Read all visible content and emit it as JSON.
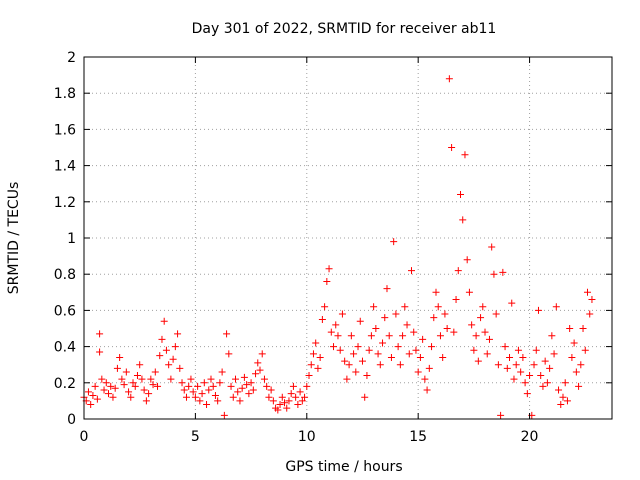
{
  "chart_data": {
    "type": "scatter",
    "title": "Day 301 of 2022, SRMTID for receiver ab11",
    "xlabel": "GPS time / hours",
    "ylabel": "SRMTID / TECUs",
    "xlim": [
      0,
      23.7
    ],
    "ylim": [
      0,
      2
    ],
    "xticks": [
      0,
      5,
      10,
      15,
      20
    ],
    "yticks": [
      0,
      0.2,
      0.4,
      0.6,
      0.8,
      1,
      1.2,
      1.4,
      1.6,
      1.8,
      2
    ],
    "xtick_labels": [
      "0",
      "5",
      "10",
      "15",
      "20"
    ],
    "ytick_labels": [
      "0",
      "0.2",
      "0.4",
      "0.6",
      "0.8",
      "1",
      "1.2",
      "1.4",
      "1.6",
      "1.8",
      "2"
    ],
    "grid": true,
    "marker": "plus",
    "color": "#ff0000",
    "series": [
      {
        "name": "SRMTID",
        "points": [
          [
            0.0,
            0.12
          ],
          [
            0.1,
            0.1
          ],
          [
            0.2,
            0.15
          ],
          [
            0.3,
            0.08
          ],
          [
            0.4,
            0.13
          ],
          [
            0.5,
            0.18
          ],
          [
            0.6,
            0.11
          ],
          [
            0.7,
            0.47
          ],
          [
            0.7,
            0.37
          ],
          [
            0.8,
            0.22
          ],
          [
            0.9,
            0.16
          ],
          [
            1.0,
            0.2
          ],
          [
            1.1,
            0.14
          ],
          [
            1.2,
            0.18
          ],
          [
            1.3,
            0.12
          ],
          [
            1.4,
            0.17
          ],
          [
            1.5,
            0.28
          ],
          [
            1.6,
            0.34
          ],
          [
            1.7,
            0.22
          ],
          [
            1.8,
            0.19
          ],
          [
            1.9,
            0.26
          ],
          [
            2.0,
            0.15
          ],
          [
            2.1,
            0.12
          ],
          [
            2.2,
            0.2
          ],
          [
            2.3,
            0.18
          ],
          [
            2.4,
            0.24
          ],
          [
            2.5,
            0.3
          ],
          [
            2.6,
            0.22
          ],
          [
            2.7,
            0.16
          ],
          [
            2.8,
            0.1
          ],
          [
            2.9,
            0.14
          ],
          [
            3.0,
            0.22
          ],
          [
            3.1,
            0.19
          ],
          [
            3.2,
            0.26
          ],
          [
            3.3,
            0.18
          ],
          [
            3.4,
            0.35
          ],
          [
            3.5,
            0.44
          ],
          [
            3.6,
            0.54
          ],
          [
            3.7,
            0.38
          ],
          [
            3.8,
            0.3
          ],
          [
            3.9,
            0.22
          ],
          [
            4.0,
            0.33
          ],
          [
            4.1,
            0.4
          ],
          [
            4.2,
            0.47
          ],
          [
            4.3,
            0.28
          ],
          [
            4.4,
            0.2
          ],
          [
            4.5,
            0.16
          ],
          [
            4.6,
            0.12
          ],
          [
            4.7,
            0.18
          ],
          [
            4.8,
            0.22
          ],
          [
            4.9,
            0.15
          ],
          [
            5.0,
            0.12
          ],
          [
            5.1,
            0.18
          ],
          [
            5.2,
            0.1
          ],
          [
            5.3,
            0.14
          ],
          [
            5.4,
            0.2
          ],
          [
            5.5,
            0.08
          ],
          [
            5.6,
            0.16
          ],
          [
            5.7,
            0.22
          ],
          [
            5.8,
            0.18
          ],
          [
            5.9,
            0.13
          ],
          [
            6.0,
            0.1
          ],
          [
            6.1,
            0.2
          ],
          [
            6.2,
            0.26
          ],
          [
            6.3,
            0.02
          ],
          [
            6.4,
            0.47
          ],
          [
            6.5,
            0.36
          ],
          [
            6.6,
            0.18
          ],
          [
            6.7,
            0.12
          ],
          [
            6.8,
            0.22
          ],
          [
            6.9,
            0.15
          ],
          [
            7.0,
            0.1
          ],
          [
            7.1,
            0.17
          ],
          [
            7.2,
            0.23
          ],
          [
            7.3,
            0.19
          ],
          [
            7.4,
            0.14
          ],
          [
            7.5,
            0.2
          ],
          [
            7.6,
            0.16
          ],
          [
            7.7,
            0.25
          ],
          [
            7.8,
            0.31
          ],
          [
            7.9,
            0.27
          ],
          [
            8.0,
            0.36
          ],
          [
            8.1,
            0.22
          ],
          [
            8.2,
            0.18
          ],
          [
            8.3,
            0.12
          ],
          [
            8.4,
            0.16
          ],
          [
            8.5,
            0.1
          ],
          [
            8.6,
            0.06
          ],
          [
            8.7,
            0.05
          ],
          [
            8.8,
            0.08
          ],
          [
            8.9,
            0.12
          ],
          [
            9.0,
            0.09
          ],
          [
            9.1,
            0.06
          ],
          [
            9.2,
            0.1
          ],
          [
            9.3,
            0.14
          ],
          [
            9.4,
            0.18
          ],
          [
            9.5,
            0.12
          ],
          [
            9.6,
            0.08
          ],
          [
            9.7,
            0.15
          ],
          [
            9.8,
            0.1
          ],
          [
            9.9,
            0.12
          ],
          [
            10.0,
            0.18
          ],
          [
            10.1,
            0.24
          ],
          [
            10.2,
            0.3
          ],
          [
            10.3,
            0.36
          ],
          [
            10.4,
            0.42
          ],
          [
            10.5,
            0.28
          ],
          [
            10.6,
            0.34
          ],
          [
            10.7,
            0.55
          ],
          [
            10.8,
            0.62
          ],
          [
            10.9,
            0.76
          ],
          [
            11.0,
            0.83
          ],
          [
            11.1,
            0.48
          ],
          [
            11.2,
            0.4
          ],
          [
            11.3,
            0.52
          ],
          [
            11.4,
            0.46
          ],
          [
            11.5,
            0.38
          ],
          [
            11.6,
            0.58
          ],
          [
            11.7,
            0.32
          ],
          [
            11.8,
            0.22
          ],
          [
            11.9,
            0.3
          ],
          [
            12.0,
            0.46
          ],
          [
            12.1,
            0.36
          ],
          [
            12.2,
            0.26
          ],
          [
            12.3,
            0.4
          ],
          [
            12.4,
            0.54
          ],
          [
            12.5,
            0.32
          ],
          [
            12.6,
            0.12
          ],
          [
            12.7,
            0.24
          ],
          [
            12.8,
            0.38
          ],
          [
            12.9,
            0.46
          ],
          [
            13.0,
            0.62
          ],
          [
            13.1,
            0.5
          ],
          [
            13.2,
            0.36
          ],
          [
            13.3,
            0.3
          ],
          [
            13.4,
            0.42
          ],
          [
            13.5,
            0.56
          ],
          [
            13.6,
            0.72
          ],
          [
            13.7,
            0.46
          ],
          [
            13.8,
            0.34
          ],
          [
            13.9,
            0.98
          ],
          [
            14.0,
            0.58
          ],
          [
            14.1,
            0.4
          ],
          [
            14.2,
            0.3
          ],
          [
            14.3,
            0.46
          ],
          [
            14.4,
            0.62
          ],
          [
            14.5,
            0.52
          ],
          [
            14.6,
            0.36
          ],
          [
            14.7,
            0.82
          ],
          [
            14.8,
            0.48
          ],
          [
            14.9,
            0.38
          ],
          [
            15.0,
            0.26
          ],
          [
            15.1,
            0.34
          ],
          [
            15.2,
            0.44
          ],
          [
            15.3,
            0.22
          ],
          [
            15.4,
            0.16
          ],
          [
            15.5,
            0.28
          ],
          [
            15.6,
            0.4
          ],
          [
            15.7,
            0.56
          ],
          [
            15.8,
            0.7
          ],
          [
            15.9,
            0.62
          ],
          [
            16.0,
            0.46
          ],
          [
            16.1,
            0.34
          ],
          [
            16.2,
            0.58
          ],
          [
            16.3,
            0.5
          ],
          [
            16.4,
            1.88
          ],
          [
            16.5,
            1.5
          ],
          [
            16.6,
            0.48
          ],
          [
            16.7,
            0.66
          ],
          [
            16.8,
            0.82
          ],
          [
            16.9,
            1.24
          ],
          [
            17.0,
            1.1
          ],
          [
            17.1,
            1.46
          ],
          [
            17.2,
            0.88
          ],
          [
            17.3,
            0.7
          ],
          [
            17.4,
            0.52
          ],
          [
            17.5,
            0.38
          ],
          [
            17.6,
            0.46
          ],
          [
            17.7,
            0.32
          ],
          [
            17.8,
            0.56
          ],
          [
            17.9,
            0.62
          ],
          [
            18.0,
            0.48
          ],
          [
            18.1,
            0.36
          ],
          [
            18.2,
            0.44
          ],
          [
            18.3,
            0.95
          ],
          [
            18.4,
            0.8
          ],
          [
            18.5,
            0.58
          ],
          [
            18.6,
            0.3
          ],
          [
            18.7,
            0.02
          ],
          [
            18.8,
            0.81
          ],
          [
            18.9,
            0.4
          ],
          [
            19.0,
            0.28
          ],
          [
            19.1,
            0.34
          ],
          [
            19.2,
            0.64
          ],
          [
            19.3,
            0.22
          ],
          [
            19.4,
            0.3
          ],
          [
            19.5,
            0.38
          ],
          [
            19.6,
            0.26
          ],
          [
            19.7,
            0.34
          ],
          [
            19.8,
            0.2
          ],
          [
            19.9,
            0.14
          ],
          [
            20.0,
            0.24
          ],
          [
            20.1,
            0.02
          ],
          [
            20.2,
            0.3
          ],
          [
            20.3,
            0.38
          ],
          [
            20.4,
            0.6
          ],
          [
            20.5,
            0.24
          ],
          [
            20.6,
            0.18
          ],
          [
            20.7,
            0.32
          ],
          [
            20.8,
            0.2
          ],
          [
            20.9,
            0.28
          ],
          [
            21.0,
            0.46
          ],
          [
            21.1,
            0.36
          ],
          [
            21.2,
            0.62
          ],
          [
            21.3,
            0.16
          ],
          [
            21.4,
            0.08
          ],
          [
            21.5,
            0.12
          ],
          [
            21.6,
            0.2
          ],
          [
            21.7,
            0.1
          ],
          [
            21.8,
            0.5
          ],
          [
            21.9,
            0.34
          ],
          [
            22.0,
            0.42
          ],
          [
            22.1,
            0.26
          ],
          [
            22.2,
            0.18
          ],
          [
            22.3,
            0.3
          ],
          [
            22.4,
            0.5
          ],
          [
            22.5,
            0.38
          ],
          [
            22.6,
            0.7
          ],
          [
            22.7,
            0.58
          ],
          [
            22.8,
            0.66
          ]
        ]
      }
    ]
  }
}
